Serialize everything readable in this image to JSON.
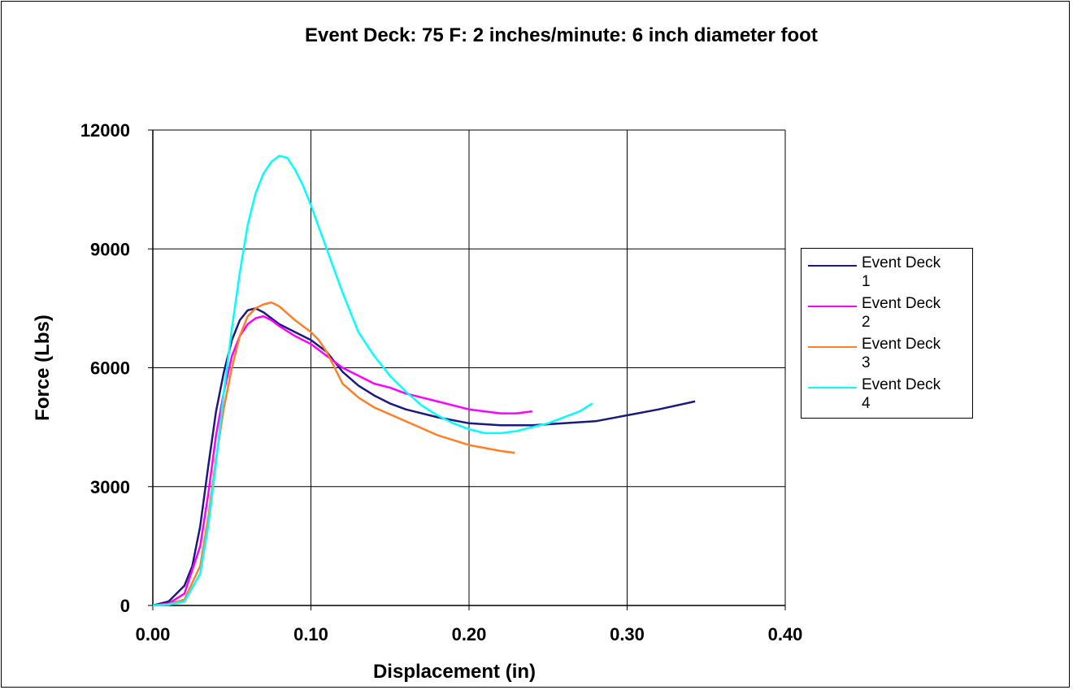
{
  "chart_data": {
    "type": "line",
    "title": "Event Deck: 75 F: 2 inches/minute: 6 inch diameter foot",
    "xlabel": "Displacement (in)",
    "ylabel": "Force (Lbs)",
    "xlim": [
      0,
      0.4
    ],
    "ylim": [
      0,
      12000
    ],
    "xticks": [
      "0.00",
      "0.10",
      "0.20",
      "0.30",
      "0.40"
    ],
    "yticks": [
      "0",
      "3000",
      "6000",
      "9000",
      "12000"
    ],
    "grid": true,
    "legend_position": "right",
    "series": [
      {
        "name": "Event Deck 1",
        "color": "#1a1a80",
        "x": [
          0,
          0.01,
          0.02,
          0.025,
          0.03,
          0.035,
          0.04,
          0.045,
          0.05,
          0.055,
          0.06,
          0.065,
          0.07,
          0.08,
          0.09,
          0.1,
          0.11,
          0.12,
          0.13,
          0.14,
          0.15,
          0.16,
          0.18,
          0.2,
          0.22,
          0.24,
          0.26,
          0.28,
          0.3,
          0.32,
          0.343
        ],
        "y": [
          0,
          100,
          500,
          1000,
          2000,
          3500,
          4900,
          5900,
          6700,
          7200,
          7450,
          7500,
          7400,
          7100,
          6900,
          6700,
          6400,
          5900,
          5550,
          5300,
          5100,
          4950,
          4750,
          4600,
          4550,
          4550,
          4600,
          4650,
          4800,
          4950,
          5150
        ]
      },
      {
        "name": "Event Deck 2",
        "color": "#ff00ff",
        "x": [
          0,
          0.01,
          0.02,
          0.03,
          0.035,
          0.04,
          0.045,
          0.05,
          0.055,
          0.06,
          0.065,
          0.07,
          0.075,
          0.08,
          0.09,
          0.1,
          0.11,
          0.12,
          0.13,
          0.14,
          0.15,
          0.16,
          0.18,
          0.2,
          0.22,
          0.23,
          0.24
        ],
        "y": [
          0,
          50,
          300,
          1500,
          2800,
          4300,
          5400,
          6300,
          6800,
          7100,
          7250,
          7300,
          7200,
          7050,
          6800,
          6600,
          6300,
          6000,
          5800,
          5600,
          5500,
          5350,
          5150,
          4950,
          4850,
          4850,
          4900
        ]
      },
      {
        "name": "Event Deck 3",
        "color": "#ff7f27",
        "x": [
          0,
          0.01,
          0.02,
          0.03,
          0.035,
          0.04,
          0.045,
          0.05,
          0.055,
          0.06,
          0.065,
          0.07,
          0.075,
          0.08,
          0.09,
          0.1,
          0.105,
          0.11,
          0.115,
          0.12,
          0.13,
          0.14,
          0.16,
          0.18,
          0.2,
          0.22,
          0.229
        ],
        "y": [
          0,
          30,
          150,
          1000,
          2200,
          3700,
          5000,
          6000,
          6800,
          7300,
          7500,
          7600,
          7650,
          7550,
          7200,
          6900,
          6700,
          6400,
          6000,
          5600,
          5250,
          5000,
          4650,
          4300,
          4050,
          3900,
          3850
        ]
      },
      {
        "name": "Event Deck 4",
        "color": "#00ffff",
        "x": [
          0,
          0.01,
          0.02,
          0.03,
          0.035,
          0.04,
          0.045,
          0.05,
          0.055,
          0.06,
          0.065,
          0.07,
          0.075,
          0.08,
          0.085,
          0.09,
          0.095,
          0.1,
          0.11,
          0.12,
          0.13,
          0.14,
          0.15,
          0.16,
          0.17,
          0.18,
          0.19,
          0.2,
          0.21,
          0.22,
          0.23,
          0.24,
          0.25,
          0.26,
          0.27,
          0.278
        ],
        "y": [
          0,
          20,
          100,
          800,
          2000,
          3600,
          5400,
          7000,
          8400,
          9600,
          10400,
          10900,
          11200,
          11350,
          11300,
          11000,
          10600,
          10100,
          9000,
          7900,
          6900,
          6300,
          5800,
          5400,
          5050,
          4800,
          4600,
          4450,
          4350,
          4350,
          4400,
          4500,
          4600,
          4750,
          4900,
          5100
        ]
      }
    ]
  },
  "legend": {
    "items": [
      {
        "line1": "Event Deck",
        "line2": "1"
      },
      {
        "line1": "Event Deck",
        "line2": "2"
      },
      {
        "line1": "Event Deck",
        "line2": "3"
      },
      {
        "line1": "Event Deck",
        "line2": "4"
      }
    ]
  }
}
